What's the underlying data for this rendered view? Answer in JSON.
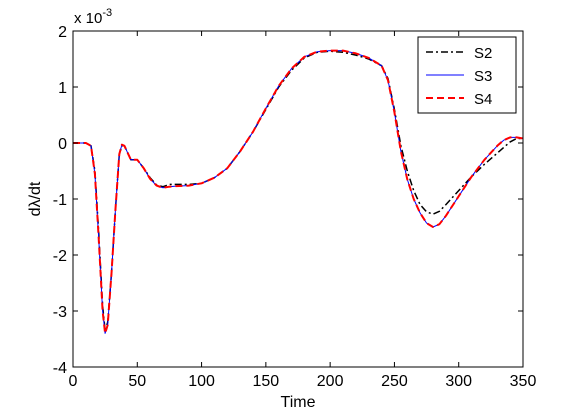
{
  "chart_data": {
    "type": "line",
    "title": "",
    "xlabel": "Time",
    "ylabel": "dλ/dt",
    "y_exponent_label": "x 10",
    "y_exponent_power": "-3",
    "xlim": [
      0,
      350
    ],
    "ylim": [
      -4,
      2
    ],
    "xticks": [
      0,
      50,
      100,
      150,
      200,
      250,
      300,
      350
    ],
    "yticks": [
      -4,
      -3,
      -2,
      -1,
      0,
      1,
      2
    ],
    "grid": false,
    "legend_position": "top-right",
    "series": [
      {
        "name": "S2",
        "color": "#000000",
        "style": "dashdot",
        "points": [
          [
            0,
            0
          ],
          [
            10,
            0
          ],
          [
            14,
            -0.05
          ],
          [
            17,
            -0.5
          ],
          [
            20,
            -1.6
          ],
          [
            23,
            -2.9
          ],
          [
            25,
            -3.35
          ],
          [
            27,
            -3.2
          ],
          [
            30,
            -2.3
          ],
          [
            33,
            -1.2
          ],
          [
            36,
            -0.2
          ],
          [
            38,
            -0.05
          ],
          [
            40,
            -0.05
          ],
          [
            43,
            -0.2
          ],
          [
            45,
            -0.3
          ],
          [
            50,
            -0.3
          ],
          [
            55,
            -0.45
          ],
          [
            60,
            -0.62
          ],
          [
            65,
            -0.75
          ],
          [
            70,
            -0.78
          ],
          [
            75,
            -0.74
          ],
          [
            80,
            -0.74
          ],
          [
            90,
            -0.74
          ],
          [
            100,
            -0.72
          ],
          [
            110,
            -0.62
          ],
          [
            120,
            -0.45
          ],
          [
            130,
            -0.15
          ],
          [
            140,
            0.2
          ],
          [
            150,
            0.6
          ],
          [
            160,
            1.0
          ],
          [
            170,
            1.3
          ],
          [
            180,
            1.52
          ],
          [
            190,
            1.62
          ],
          [
            200,
            1.64
          ],
          [
            210,
            1.62
          ],
          [
            220,
            1.57
          ],
          [
            230,
            1.5
          ],
          [
            240,
            1.38
          ],
          [
            245,
            1.15
          ],
          [
            250,
            0.6
          ],
          [
            255,
            -0.05
          ],
          [
            260,
            -0.5
          ],
          [
            265,
            -0.85
          ],
          [
            270,
            -1.1
          ],
          [
            275,
            -1.23
          ],
          [
            280,
            -1.27
          ],
          [
            285,
            -1.22
          ],
          [
            290,
            -1.1
          ],
          [
            300,
            -0.85
          ],
          [
            310,
            -0.6
          ],
          [
            320,
            -0.38
          ],
          [
            330,
            -0.18
          ],
          [
            340,
            0.02
          ],
          [
            345,
            0.08
          ],
          [
            350,
            0.08
          ]
        ]
      },
      {
        "name": "S3",
        "color": "#0000ff",
        "style": "solid",
        "points": [
          [
            0,
            0
          ],
          [
            10,
            0
          ],
          [
            14,
            -0.05
          ],
          [
            17,
            -0.55
          ],
          [
            20,
            -1.7
          ],
          [
            23,
            -3.0
          ],
          [
            25,
            -3.4
          ],
          [
            27,
            -3.25
          ],
          [
            30,
            -2.3
          ],
          [
            33,
            -1.2
          ],
          [
            36,
            -0.2
          ],
          [
            38,
            -0.03
          ],
          [
            40,
            -0.05
          ],
          [
            43,
            -0.2
          ],
          [
            45,
            -0.3
          ],
          [
            50,
            -0.3
          ],
          [
            55,
            -0.45
          ],
          [
            60,
            -0.64
          ],
          [
            65,
            -0.76
          ],
          [
            70,
            -0.8
          ],
          [
            75,
            -0.78
          ],
          [
            80,
            -0.77
          ],
          [
            90,
            -0.76
          ],
          [
            100,
            -0.72
          ],
          [
            110,
            -0.62
          ],
          [
            120,
            -0.45
          ],
          [
            130,
            -0.15
          ],
          [
            140,
            0.2
          ],
          [
            150,
            0.62
          ],
          [
            160,
            1.02
          ],
          [
            170,
            1.33
          ],
          [
            180,
            1.54
          ],
          [
            190,
            1.63
          ],
          [
            200,
            1.65
          ],
          [
            210,
            1.65
          ],
          [
            220,
            1.6
          ],
          [
            230,
            1.52
          ],
          [
            240,
            1.38
          ],
          [
            245,
            1.12
          ],
          [
            250,
            0.55
          ],
          [
            255,
            -0.15
          ],
          [
            260,
            -0.65
          ],
          [
            265,
            -1.0
          ],
          [
            270,
            -1.25
          ],
          [
            275,
            -1.43
          ],
          [
            280,
            -1.5
          ],
          [
            285,
            -1.45
          ],
          [
            290,
            -1.3
          ],
          [
            300,
            -0.95
          ],
          [
            310,
            -0.6
          ],
          [
            320,
            -0.3
          ],
          [
            330,
            -0.05
          ],
          [
            335,
            0.05
          ],
          [
            340,
            0.1
          ],
          [
            345,
            0.1
          ],
          [
            350,
            0.08
          ]
        ]
      },
      {
        "name": "S4",
        "color": "#ff0000",
        "style": "dashed",
        "points": [
          [
            0,
            0
          ],
          [
            10,
            0
          ],
          [
            14,
            -0.05
          ],
          [
            17,
            -0.55
          ],
          [
            20,
            -1.7
          ],
          [
            23,
            -3.0
          ],
          [
            25,
            -3.4
          ],
          [
            27,
            -3.25
          ],
          [
            30,
            -2.3
          ],
          [
            33,
            -1.2
          ],
          [
            36,
            -0.2
          ],
          [
            38,
            -0.03
          ],
          [
            40,
            -0.05
          ],
          [
            43,
            -0.2
          ],
          [
            45,
            -0.3
          ],
          [
            50,
            -0.3
          ],
          [
            55,
            -0.45
          ],
          [
            60,
            -0.64
          ],
          [
            65,
            -0.76
          ],
          [
            70,
            -0.8
          ],
          [
            75,
            -0.78
          ],
          [
            80,
            -0.77
          ],
          [
            90,
            -0.76
          ],
          [
            100,
            -0.72
          ],
          [
            110,
            -0.62
          ],
          [
            120,
            -0.45
          ],
          [
            130,
            -0.15
          ],
          [
            140,
            0.2
          ],
          [
            150,
            0.62
          ],
          [
            160,
            1.02
          ],
          [
            170,
            1.33
          ],
          [
            180,
            1.54
          ],
          [
            190,
            1.63
          ],
          [
            200,
            1.65
          ],
          [
            210,
            1.65
          ],
          [
            220,
            1.6
          ],
          [
            230,
            1.52
          ],
          [
            240,
            1.38
          ],
          [
            245,
            1.12
          ],
          [
            250,
            0.55
          ],
          [
            255,
            -0.15
          ],
          [
            260,
            -0.65
          ],
          [
            265,
            -1.0
          ],
          [
            270,
            -1.25
          ],
          [
            275,
            -1.43
          ],
          [
            280,
            -1.5
          ],
          [
            285,
            -1.45
          ],
          [
            290,
            -1.3
          ],
          [
            300,
            -0.95
          ],
          [
            310,
            -0.6
          ],
          [
            320,
            -0.3
          ],
          [
            330,
            -0.05
          ],
          [
            335,
            0.05
          ],
          [
            340,
            0.1
          ],
          [
            345,
            0.1
          ],
          [
            350,
            0.08
          ]
        ]
      }
    ]
  }
}
